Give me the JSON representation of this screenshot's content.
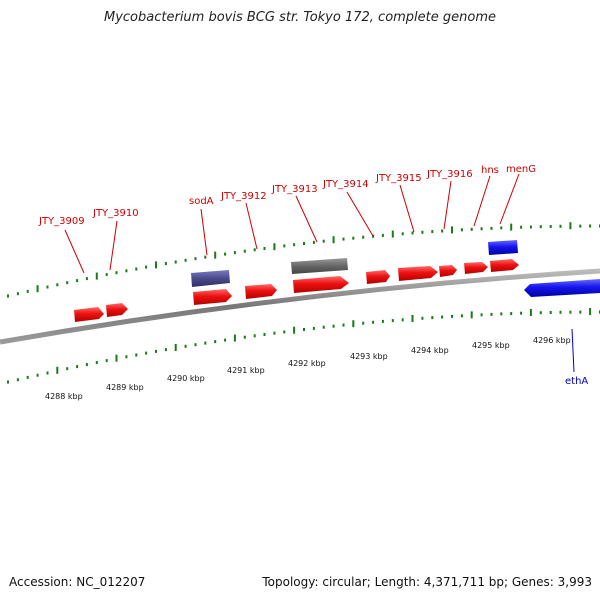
{
  "title": "Mycobacterium bovis BCG str. Tokyo 172, complete genome",
  "footer": {
    "accession": "Accession: NC_012207",
    "genome_info": "Topology: circular; Length: 4,371,711 bp; Genes: 3,993"
  },
  "colors": {
    "forward_gene": "#ee1111",
    "reverse_gene": "#1111ee",
    "grey_feature": "#666666",
    "purple_feature": "#4a4a8c",
    "backbone": "#888888",
    "tick": "#1a7a1a"
  },
  "gene_labels": [
    {
      "id": "g3909",
      "text": "JTY_3909"
    },
    {
      "id": "g3910",
      "text": "JTY_3910"
    },
    {
      "id": "sodA",
      "text": "sodA"
    },
    {
      "id": "g3912",
      "text": "JTY_3912"
    },
    {
      "id": "g3913",
      "text": "JTY_3913"
    },
    {
      "id": "g3914",
      "text": "JTY_3914"
    },
    {
      "id": "g3915",
      "text": "JTY_3915"
    },
    {
      "id": "g3916",
      "text": "JTY_3916"
    },
    {
      "id": "hns",
      "text": "hns"
    },
    {
      "id": "menG",
      "text": "menG"
    },
    {
      "id": "ethA",
      "text": "ethA"
    }
  ],
  "scale_labels": [
    "4288 kbp",
    "4289 kbp",
    "4290 kbp",
    "4291 kbp",
    "4292 kbp",
    "4293 kbp",
    "4294 kbp",
    "4295 kbp",
    "4296 kbp"
  ]
}
